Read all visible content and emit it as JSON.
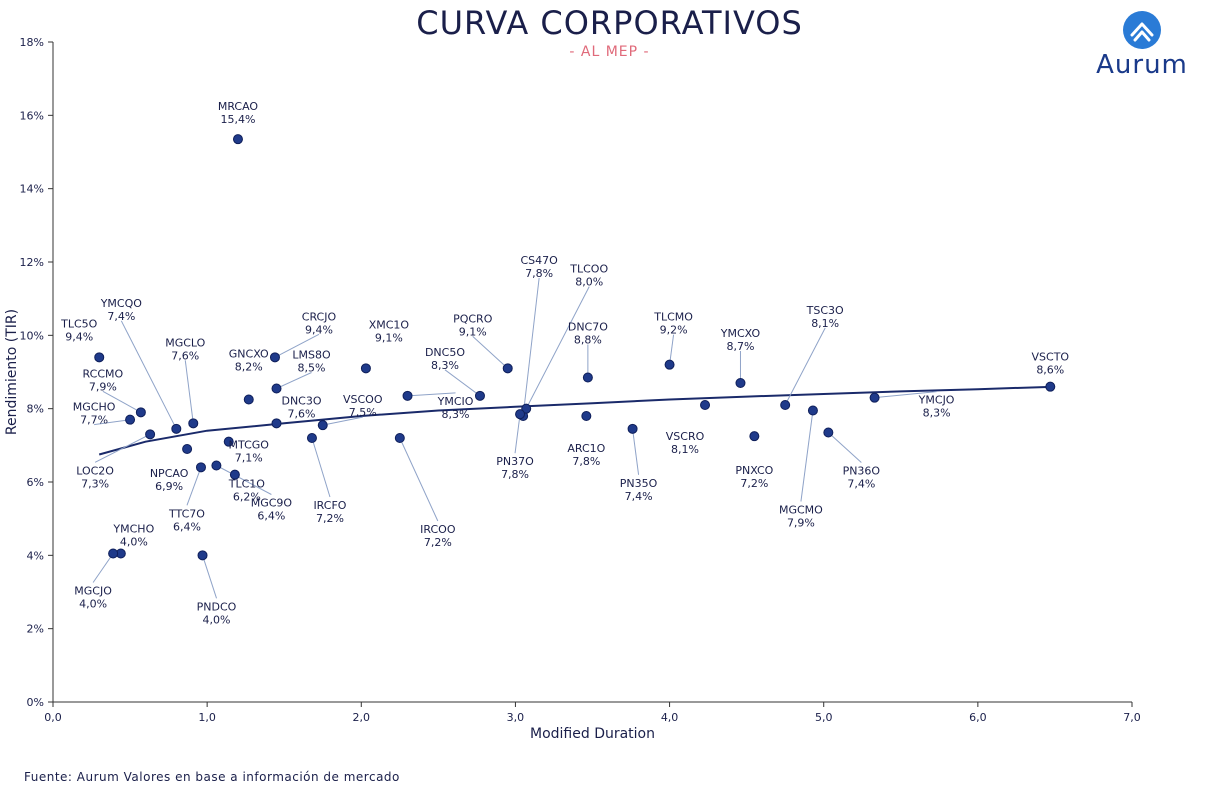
{
  "header": {
    "title": "CURVA CORPORATIVOS",
    "subtitle": "- AL MEP -"
  },
  "logo": {
    "text": "Aurum",
    "icon": "chevron-up-icon",
    "color": "#1a3a8a"
  },
  "footer": {
    "source": "Fuente: Aurum Valores en base a información de mercado"
  },
  "chart_data": {
    "type": "scatter",
    "xlabel": "Modified Duration",
    "ylabel": "Rendimiento (TIR)",
    "xlim": [
      0,
      7
    ],
    "ylim": [
      0,
      18
    ],
    "x_ticks": [
      "0,0",
      "1,0",
      "2,0",
      "3,0",
      "4,0",
      "5,0",
      "6,0",
      "7,0"
    ],
    "y_ticks": [
      "0%",
      "2%",
      "4%",
      "6%",
      "8%",
      "10%",
      "12%",
      "14%",
      "16%",
      "18%"
    ],
    "grid": false,
    "point_color": "#1f3a8a",
    "trend_color": "#1a2a6a",
    "trendline": {
      "x": [
        0.3,
        0.6,
        1.0,
        1.5,
        2.0,
        2.5,
        3.0,
        3.5,
        4.0,
        4.5,
        5.0,
        5.5,
        6.0,
        6.5
      ],
      "y": [
        6.75,
        7.1,
        7.4,
        7.6,
        7.8,
        7.95,
        8.05,
        8.15,
        8.25,
        8.33,
        8.4,
        8.47,
        8.53,
        8.6
      ]
    },
    "points": [
      {
        "name": "MRCAO",
        "label": "15,4%",
        "x": 1.2,
        "y": 15.35
      },
      {
        "name": "TLC5O",
        "label": "9,4%",
        "x": 0.3,
        "y": 9.4
      },
      {
        "name": "YMCQO",
        "label": "7,4%",
        "x": 0.8,
        "y": 7.45
      },
      {
        "name": "RCCMO",
        "label": "7,9%",
        "x": 0.57,
        "y": 7.9
      },
      {
        "name": "MGCHO",
        "label": "7,7%",
        "x": 0.5,
        "y": 7.7
      },
      {
        "name": "LOC2O",
        "label": "7,3%",
        "x": 0.63,
        "y": 7.3
      },
      {
        "name": "MGCLO",
        "label": "7,6%",
        "x": 0.91,
        "y": 7.6
      },
      {
        "name": "NPCAO",
        "label": "6,9%",
        "x": 0.87,
        "y": 6.9
      },
      {
        "name": "TTC7O",
        "label": "6,4%",
        "x": 0.96,
        "y": 6.4
      },
      {
        "name": "GNCXO",
        "label": "8,2%",
        "x": 1.27,
        "y": 8.25
      },
      {
        "name": "CRCJO",
        "label": "9,4%",
        "x": 1.44,
        "y": 9.4
      },
      {
        "name": "LMS8O",
        "label": "8,5%",
        "x": 1.45,
        "y": 8.55
      },
      {
        "name": "DNC3O",
        "label": "7,6%",
        "x": 1.45,
        "y": 7.6
      },
      {
        "name": "MTCGO",
        "label": "7,1%",
        "x": 1.14,
        "y": 7.1
      },
      {
        "name": "TLC1O",
        "label": "6,2%",
        "x": 1.18,
        "y": 6.2
      },
      {
        "name": "MGC9O",
        "label": "6,4%",
        "x": 1.06,
        "y": 6.45
      },
      {
        "name": "XMC1O",
        "label": "9,1%",
        "x": 2.03,
        "y": 9.1
      },
      {
        "name": "VSCOO",
        "label": "7,5%",
        "x": 1.75,
        "y": 7.55
      },
      {
        "name": "IRCFO",
        "label": "7,2%",
        "x": 1.68,
        "y": 7.2
      },
      {
        "name": "YMCIO",
        "label": "8,3%",
        "x": 2.3,
        "y": 8.35
      },
      {
        "name": "IRCOO",
        "label": "7,2%",
        "x": 2.25,
        "y": 7.2
      },
      {
        "name": "PQCRO",
        "label": "9,1%",
        "x": 2.95,
        "y": 9.1
      },
      {
        "name": "DNC5O",
        "label": "8,3%",
        "x": 2.77,
        "y": 8.35
      },
      {
        "name": "CS47O",
        "label": "7,8%",
        "x": 3.05,
        "y": 7.8
      },
      {
        "name": "TLCOO",
        "label": "8,0%",
        "x": 3.07,
        "y": 8.0
      },
      {
        "name": "PN37O",
        "label": "7,8%",
        "x": 3.03,
        "y": 7.85
      },
      {
        "name": "DNC7O",
        "label": "8,8%",
        "x": 3.47,
        "y": 8.85
      },
      {
        "name": "ARC1O",
        "label": "7,8%",
        "x": 3.46,
        "y": 7.8
      },
      {
        "name": "PN35O",
        "label": "7,4%",
        "x": 3.76,
        "y": 7.45
      },
      {
        "name": "TLCMO",
        "label": "9,2%",
        "x": 4.0,
        "y": 9.2
      },
      {
        "name": "VSCRO",
        "label": "8,1%",
        "x": 4.23,
        "y": 8.1
      },
      {
        "name": "YMCXO",
        "label": "8,7%",
        "x": 4.46,
        "y": 8.7
      },
      {
        "name": "PNXCO",
        "label": "7,2%",
        "x": 4.55,
        "y": 7.25
      },
      {
        "name": "TSC3O",
        "label": "8,1%",
        "x": 4.75,
        "y": 8.1
      },
      {
        "name": "MGCMO",
        "label": "7,9%",
        "x": 4.93,
        "y": 7.95
      },
      {
        "name": "PN36O",
        "label": "7,4%",
        "x": 5.03,
        "y": 7.35
      },
      {
        "name": "YMCJO",
        "label": "8,3%",
        "x": 5.33,
        "y": 8.3
      },
      {
        "name": "VSCTO",
        "label": "8,6%",
        "x": 6.47,
        "y": 8.6
      },
      {
        "name": "YMCHO",
        "label": "4,0%",
        "x": 0.44,
        "y": 4.05
      },
      {
        "name": "MGCJO",
        "label": "4,0%",
        "x": 0.39,
        "y": 4.05
      },
      {
        "name": "PNDCO",
        "label": "4,0%",
        "x": 0.97,
        "y": 4.0
      }
    ]
  }
}
